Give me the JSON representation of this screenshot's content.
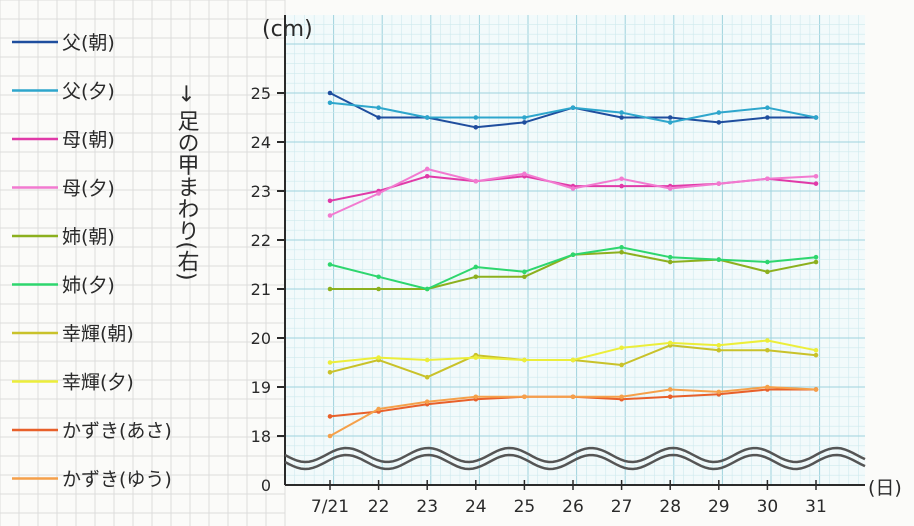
{
  "chart_data": {
    "type": "line",
    "unit_label": "(cm)",
    "x_unit_label": "(日)",
    "vertical_label": "→ 足の甲まわり(右)",
    "categories": [
      "7/21",
      "22",
      "23",
      "24",
      "25",
      "26",
      "27",
      "28",
      "29",
      "30",
      "31"
    ],
    "y_ticks": [
      "18",
      "19",
      "20",
      "21",
      "22",
      "23",
      "24",
      "25"
    ],
    "y_zero_label": "0",
    "ylim": [
      17.3,
      25.9
    ],
    "axis_break": true,
    "grid": true,
    "legend_position": "left",
    "series": [
      {
        "name": "父(朝)",
        "color": "#1f4e9e",
        "values": [
          25.0,
          24.5,
          24.5,
          24.3,
          24.4,
          24.7,
          24.5,
          24.5,
          24.4,
          24.5,
          24.5
        ]
      },
      {
        "name": "父(夕)",
        "color": "#2ea6cc",
        "values": [
          24.8,
          24.7,
          24.5,
          24.5,
          24.5,
          24.7,
          24.6,
          24.4,
          24.6,
          24.7,
          24.5
        ]
      },
      {
        "name": "母(朝)",
        "color": "#e03aa8",
        "values": [
          22.8,
          23.0,
          23.3,
          23.2,
          23.3,
          23.1,
          23.1,
          23.1,
          23.15,
          23.25,
          23.15
        ]
      },
      {
        "name": "母(夕)",
        "color": "#f27ad0",
        "values": [
          22.5,
          22.95,
          23.45,
          23.2,
          23.35,
          23.05,
          23.25,
          23.05,
          23.15,
          23.25,
          23.3
        ]
      },
      {
        "name": "姉(朝)",
        "color": "#8cb01e",
        "values": [
          21.0,
          21.0,
          21.0,
          21.25,
          21.25,
          21.7,
          21.75,
          21.55,
          21.6,
          21.35,
          21.55
        ]
      },
      {
        "name": "姉(夕)",
        "color": "#2ed66e",
        "values": [
          21.5,
          21.25,
          21.0,
          21.45,
          21.35,
          21.7,
          21.85,
          21.65,
          21.6,
          21.55,
          21.65
        ]
      },
      {
        "name": "幸輝(朝)",
        "color": "#c9c22a",
        "values": [
          19.3,
          19.55,
          19.2,
          19.65,
          19.55,
          19.55,
          19.45,
          19.85,
          19.75,
          19.75,
          19.65
        ]
      },
      {
        "name": "幸輝(夕)",
        "color": "#ecee3a",
        "values": [
          19.5,
          19.6,
          19.55,
          19.6,
          19.55,
          19.55,
          19.8,
          19.9,
          19.85,
          19.95,
          19.75
        ]
      },
      {
        "name": "かずき(あさ)",
        "color": "#e8602a",
        "values": [
          18.4,
          18.5,
          18.65,
          18.75,
          18.8,
          18.8,
          18.75,
          18.8,
          18.85,
          18.95,
          18.95
        ]
      },
      {
        "name": "かずき(ゆう)",
        "color": "#f5a04a",
        "values": [
          18.0,
          18.55,
          18.7,
          18.8,
          18.8,
          18.8,
          18.8,
          18.95,
          18.9,
          19.0,
          18.95
        ]
      }
    ]
  }
}
